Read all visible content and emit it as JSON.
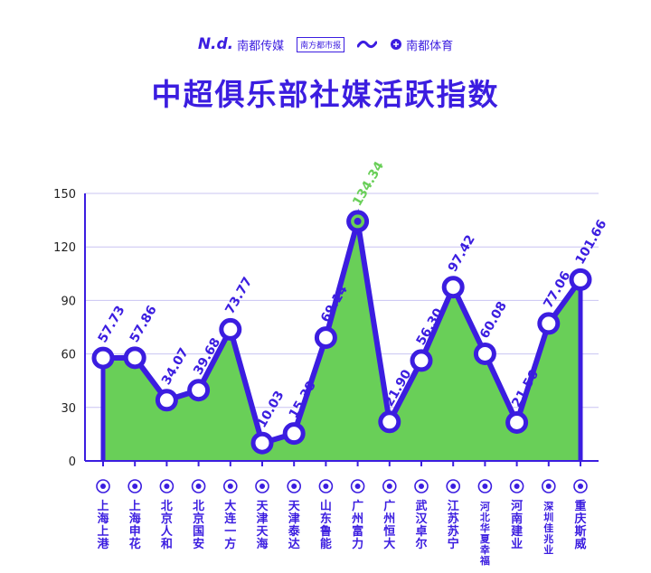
{
  "brand": {
    "logo1_mark": "N.d.",
    "logo1_text": "南都传媒",
    "logo2_text": "南方都市报",
    "logo4_text": "南都体育"
  },
  "title": "中超俱乐部社媒活跃指数",
  "colors": {
    "accent": "#3b1de0",
    "fill": "#69cf58",
    "peak": "#69cf58",
    "grid": "#c9c4f2"
  },
  "chart_data": {
    "type": "area",
    "title": "中超俱乐部社媒活跃指数",
    "xlabel": "",
    "ylabel": "",
    "ylim": [
      0,
      150
    ],
    "yticks": [
      0,
      30,
      60,
      90,
      120,
      150
    ],
    "grid": true,
    "categories": [
      "上海上港",
      "上海申花",
      "北京人和",
      "北京国安",
      "大连一方",
      "天津天海",
      "天津泰达",
      "山东鲁能",
      "广州富力",
      "广州恒大",
      "武汉卓尔",
      "江苏苏宁",
      "河北华夏幸福",
      "河南建业",
      "深圳佳兆业",
      "重庆斯威"
    ],
    "category_labels": [
      "上海上港",
      "上海申花",
      "北京人和",
      "北京国安",
      "大连一方",
      "天津天海",
      "天津泰达",
      "山东鲁能",
      "广州富力",
      "广州恒大",
      "武汉卓尔",
      "江苏苏宁",
      "河北华夏幸福",
      "河南建业",
      "深圳佳兆业",
      "重庆斯威"
    ],
    "values": [
      57.73,
      57.86,
      34.07,
      39.68,
      73.77,
      10.03,
      15.38,
      69.14,
      134.34,
      21.9,
      56.3,
      97.42,
      60.08,
      21.56,
      77.06,
      101.66
    ],
    "value_labels": [
      "57.73",
      "57.86",
      "34.07",
      "39.68",
      "73.77",
      "10.03",
      "15.38",
      "69.14",
      "134.34",
      "21.90",
      "56.30",
      "97.42",
      "60.08",
      "21.56",
      "77.06",
      "101.66"
    ],
    "highlight_index": 8
  }
}
